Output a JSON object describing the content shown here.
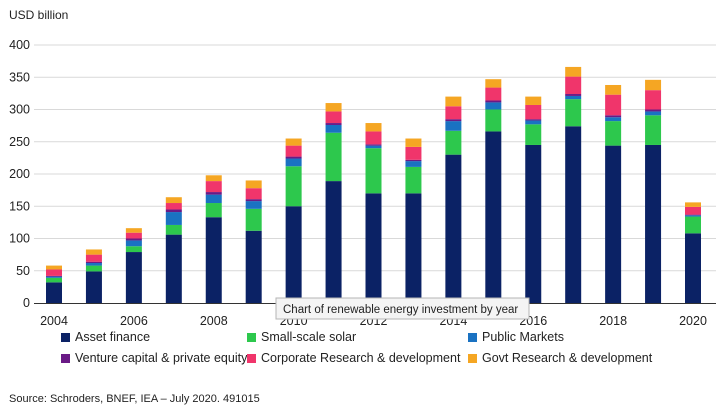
{
  "chart_data": {
    "type": "bar",
    "stacked": true,
    "ylabel": "USD billion",
    "ylim": [
      0,
      400
    ],
    "yticks": [
      0,
      50,
      100,
      150,
      200,
      250,
      300,
      350,
      400
    ],
    "grid": true,
    "legend_position": "bottom",
    "categories": [
      "2004",
      "2005",
      "2006",
      "2007",
      "2008",
      "2009",
      "2010",
      "2011",
      "2012",
      "2013",
      "2014",
      "2015",
      "2016",
      "2017",
      "2018",
      "2019",
      "2020"
    ],
    "x_tick_labels": [
      "2004",
      "",
      "2006",
      "",
      "2008",
      "",
      "2010",
      "",
      "2012",
      "",
      "2014",
      "",
      "2016",
      "",
      "2018",
      "",
      "2020"
    ],
    "series": [
      {
        "name": "Asset finance",
        "color": "#0b2265",
        "values": [
          32,
          49,
          79,
          106,
          133,
          112,
          150,
          189,
          170,
          170,
          230,
          266,
          245,
          274,
          244,
          245,
          108
        ]
      },
      {
        "name": "Small-scale solar",
        "color": "#2dc84d",
        "values": [
          7,
          9,
          9,
          15,
          22,
          34,
          62,
          75,
          70,
          41,
          37,
          34,
          32,
          42,
          38,
          46,
          26
        ]
      },
      {
        "name": "Public Markets",
        "color": "#1a72c2",
        "values": [
          2,
          4,
          9,
          20,
          13,
          12,
          12,
          12,
          4,
          9,
          15,
          11,
          6,
          5,
          6,
          6,
          2
        ]
      },
      {
        "name": "Venture capital & private equity",
        "color": "#6a1a86",
        "values": [
          1,
          2,
          3,
          4,
          4,
          3,
          3,
          3,
          2,
          2,
          3,
          3,
          2,
          3,
          3,
          3,
          1
        ]
      },
      {
        "name": "Corporate Research & development",
        "color": "#f0356b",
        "values": [
          10,
          11,
          9,
          10,
          17,
          17,
          17,
          18,
          20,
          20,
          20,
          20,
          22,
          27,
          32,
          30,
          12
        ]
      },
      {
        "name": "Govt Research & development",
        "color": "#f5a623",
        "values": [
          6,
          8,
          7,
          9,
          9,
          12,
          11,
          13,
          13,
          13,
          15,
          13,
          13,
          15,
          15,
          16,
          7
        ]
      }
    ],
    "tooltip": "Chart of renewable energy investment by year",
    "source": "Source: Schroders, BNEF, IEA – July 2020. 491015"
  }
}
